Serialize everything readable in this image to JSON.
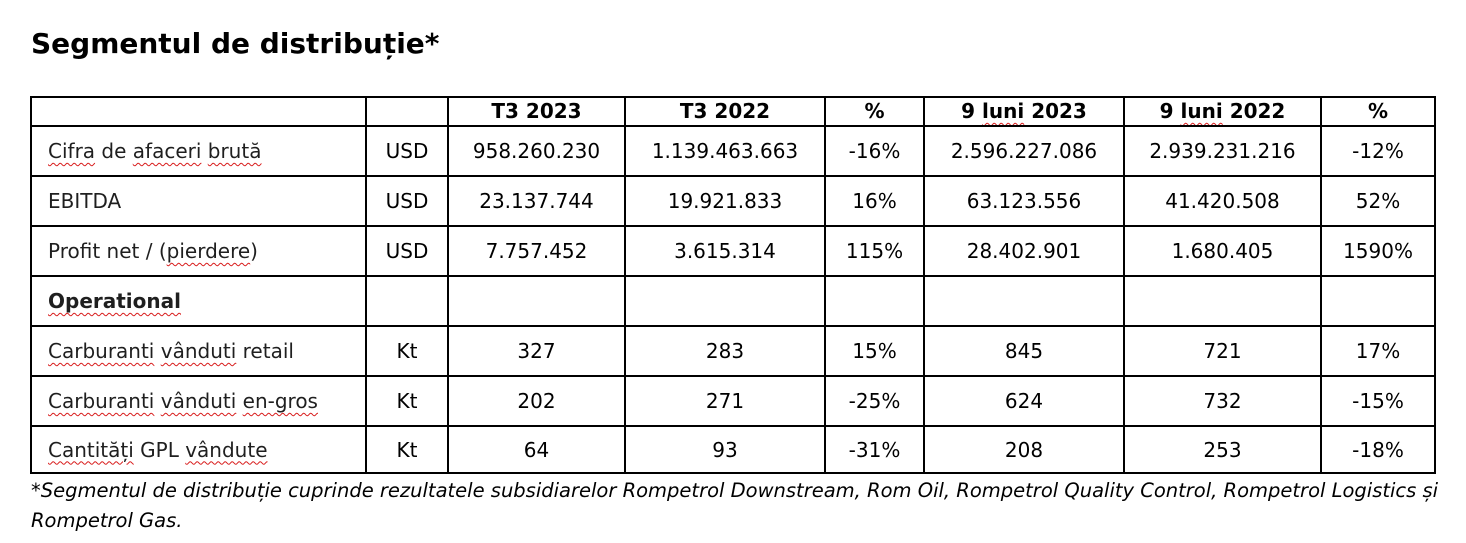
{
  "title": "Segmentul de distribuție*",
  "table": {
    "headers": [
      "",
      "",
      "T3 2023",
      "T3 2022",
      "%",
      "9 luni 2023",
      "9 luni 2022",
      "%"
    ],
    "header_squiggle_prefix": "luni",
    "rows": [
      {
        "label": "Cifra de afaceri brută",
        "unit": "USD",
        "t3_2023": "958.260.230",
        "t3_2022": "1.139.463.663",
        "pct_t3": "-16%",
        "m9_2023": "2.596.227.086",
        "m9_2022": "2.939.231.216",
        "pct_9m": "-12%"
      },
      {
        "label": "EBITDA",
        "unit": "USD",
        "t3_2023": "23.137.744",
        "t3_2022": "19.921.833",
        "pct_t3": "16%",
        "m9_2023": "63.123.556",
        "m9_2022": "41.420.508",
        "pct_9m": "52%"
      },
      {
        "label": "Profit net / (pierdere)",
        "unit": "USD",
        "t3_2023": "7.757.452",
        "t3_2022": "3.615.314",
        "pct_t3": "115%",
        "m9_2023": "28.402.901",
        "m9_2022": "1.680.405",
        "pct_9m": "1590%"
      },
      {
        "label": "Operational",
        "unit": "",
        "t3_2023": "",
        "t3_2022": "",
        "pct_t3": "",
        "m9_2023": "",
        "m9_2022": "",
        "pct_9m": ""
      },
      {
        "label": "Carburanti vânduti retail",
        "unit": "Kt",
        "t3_2023": "327",
        "t3_2022": "283",
        "pct_t3": "15%",
        "m9_2023": "845",
        "m9_2022": "721",
        "pct_9m": "17%"
      },
      {
        "label": "Carburanti vânduti en-gros",
        "unit": "Kt",
        "t3_2023": "202",
        "t3_2022": "271",
        "pct_t3": "-25%",
        "m9_2023": "624",
        "m9_2022": "732",
        "pct_9m": "-15%"
      },
      {
        "label": "Cantități GPL vândute",
        "unit": "Kt",
        "t3_2023": "64",
        "t3_2022": "93",
        "pct_t3": "-31%",
        "m9_2023": "208",
        "m9_2022": "253",
        "pct_9m": "-18%"
      }
    ]
  },
  "footnote": "*Segmentul de distribuție cuprinde rezultatele subsidiarelor Rompetrol Downstream, Rom Oil, Rompetrol Quality Control, Rompetrol Logistics și Rompetrol Gas.",
  "colors": {
    "text": "#000000",
    "border": "#000000",
    "spellcheck_squiggle": "#d81b1b"
  }
}
